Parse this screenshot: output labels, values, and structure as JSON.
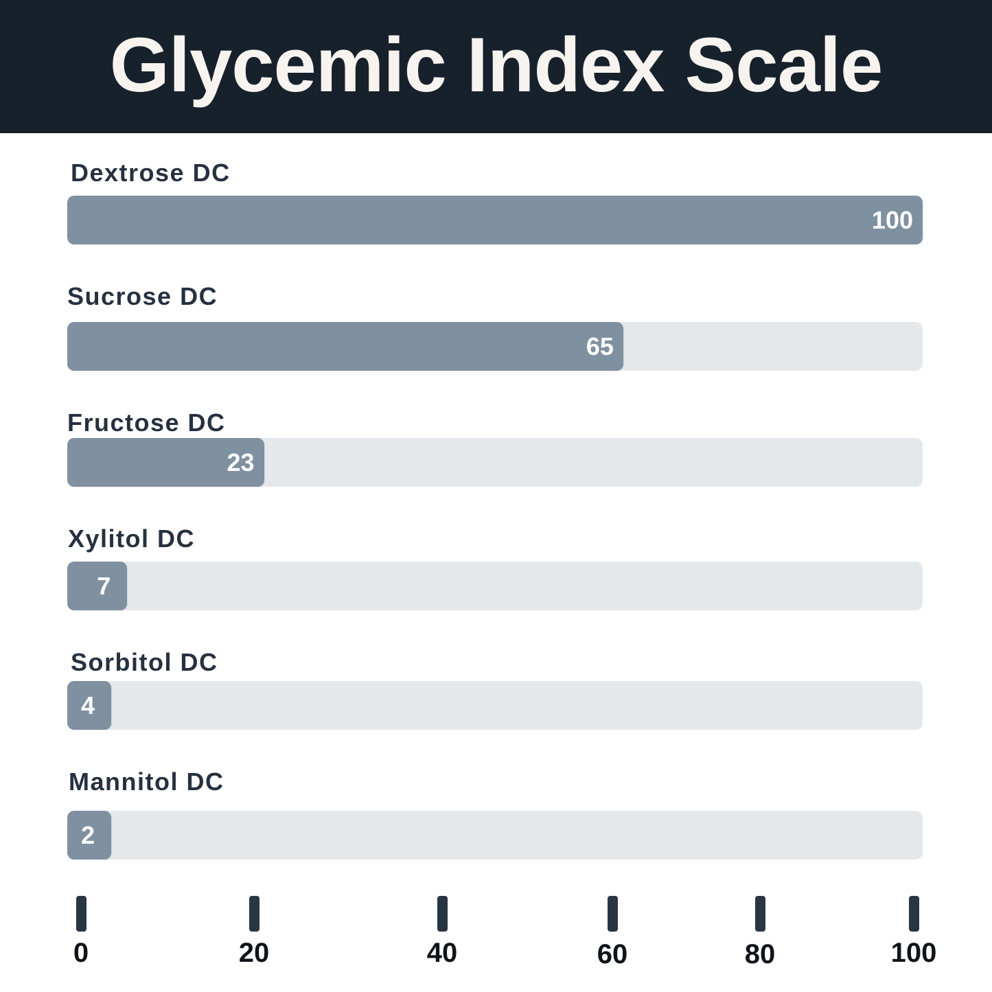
{
  "header": {
    "title": "Glycemic Index Scale",
    "background_color": "#17212c",
    "text_color": "#f7f4ef"
  },
  "chart_data": {
    "type": "bar",
    "orientation": "horizontal",
    "title": "Glycemic Index Scale",
    "categories": [
      "Dextrose DC",
      "Sucrose DC",
      "Fructose DC",
      "Xylitol DC",
      "Sorbitol DC",
      "Mannitol DC"
    ],
    "values": [
      100,
      65,
      23,
      7,
      4,
      2
    ],
    "value_labels": [
      "100",
      "65",
      "23",
      "7",
      "4",
      "2"
    ],
    "xlim": [
      0,
      100
    ],
    "x_ticks": [
      "0",
      "20",
      "40",
      "60",
      "80",
      "100"
    ],
    "grid": false,
    "legend": "none",
    "bar_color": "#7f90a0",
    "track_color": "#e5e8eb"
  }
}
